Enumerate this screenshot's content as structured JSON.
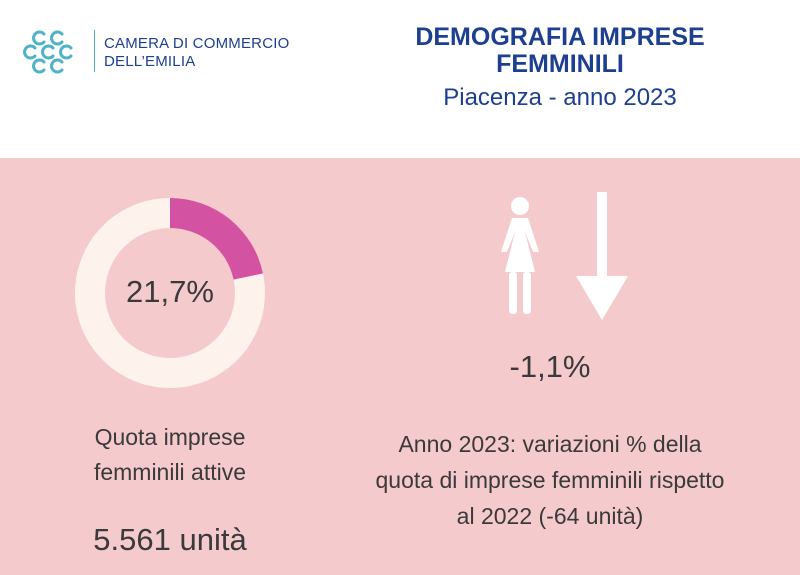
{
  "header": {
    "org_line1": "CAMERA DI COMMERCIO",
    "org_line2": "DELL’EMILIA",
    "title_line1": "DEMOGRAFIA IMPRESE",
    "title_line2": "FEMMINILI",
    "subtitle": "Piacenza - anno 2023"
  },
  "left": {
    "caption_line1": "Quota imprese",
    "caption_line2": "femminili attive",
    "count": "5.561 unità"
  },
  "right": {
    "change_label": "-1,1%",
    "caption_line1": "Anno 2023: variazioni % della",
    "caption_line2": "quota di imprese femminili rispetto",
    "caption_line3": "al 2022 (-64 unità)",
    "icons": [
      "woman-icon",
      "arrow-down-icon"
    ]
  },
  "colors": {
    "brand_blue": "#1d3f8f",
    "logo_cyan": "#4fb3c8",
    "panel_pink": "#f5cacc",
    "donut_highlight": "#d452a2",
    "donut_track": "#fdf3ec",
    "text_dark": "#3a3a3a",
    "icon_white": "#ffffff"
  },
  "chart_data": {
    "type": "pie",
    "variant": "donut",
    "center_label": "21,7%",
    "slices": [
      {
        "label": "Quota imprese femminili attive",
        "value": 21.7
      },
      {
        "label": "",
        "value": 78.3
      }
    ],
    "unit": "%"
  }
}
